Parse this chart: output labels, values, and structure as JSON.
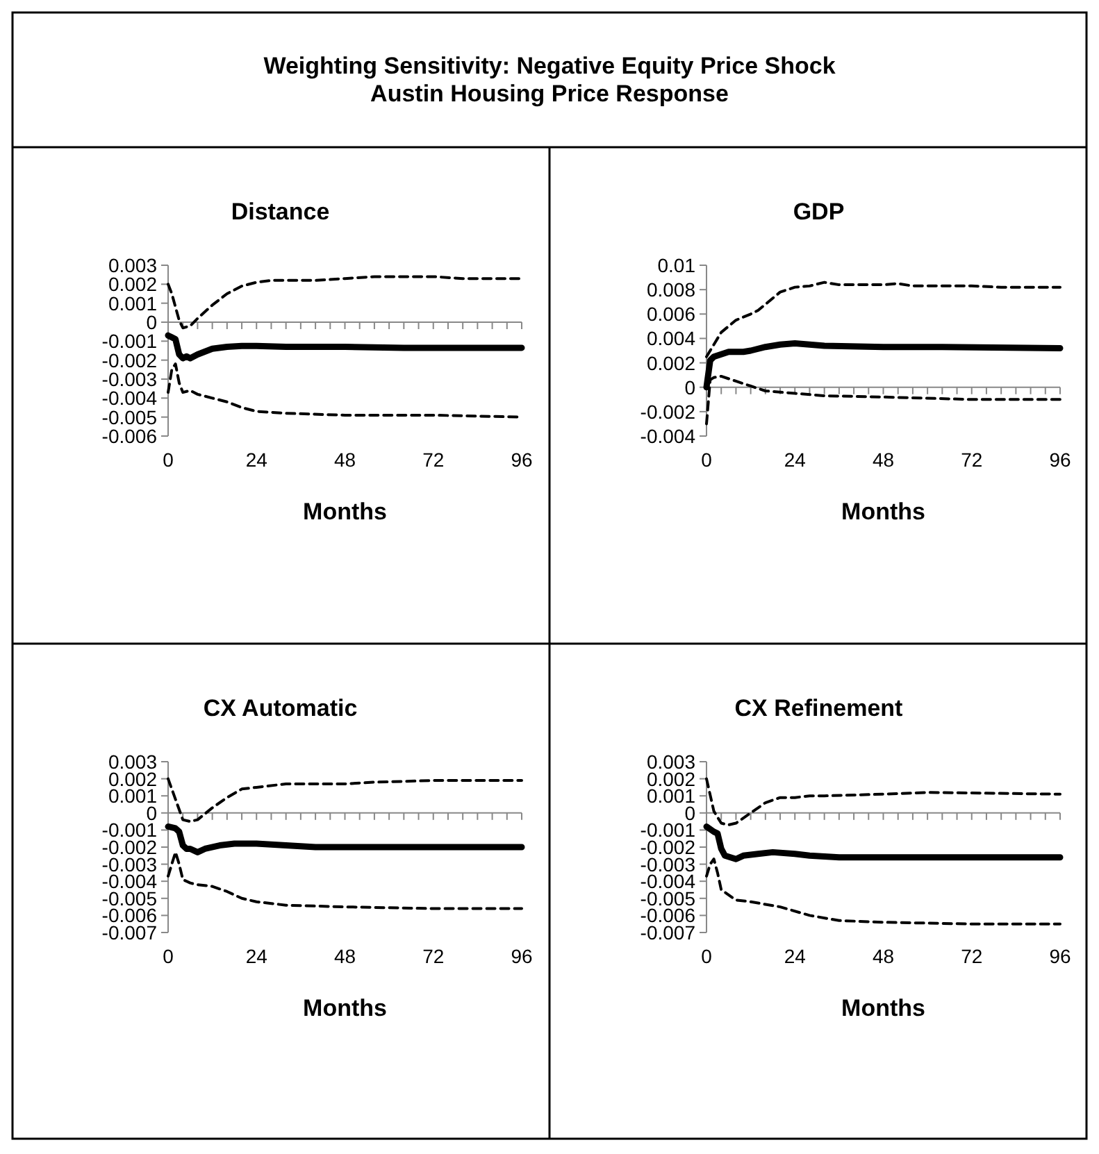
{
  "chart_data": [
    {
      "type": "other",
      "title": "Weighting Sensitivity: Negative Equity Price Shock\nAustin Housing Price Response"
    },
    {
      "type": "line",
      "title": "Distance",
      "xlabel": "Months",
      "ylim": [
        -0.006,
        0.003
      ],
      "yticks": [
        -0.006,
        -0.005,
        -0.004,
        -0.003,
        -0.002,
        -0.001,
        0,
        0.001,
        0.002,
        0.003
      ],
      "xlim": [
        0,
        96
      ],
      "xticks": [
        0,
        {
          "value": 4,
          "label": null
        },
        {
          "value": 8,
          "label": null
        },
        {
          "value": 12,
          "label": null
        },
        {
          "value": 16,
          "label": null
        },
        {
          "value": 20,
          "label": null
        },
        24,
        {
          "value": 28,
          "label": null
        },
        {
          "value": 32,
          "label": null
        },
        {
          "value": 36,
          "label": null
        },
        {
          "value": 40,
          "label": null
        },
        {
          "value": 44,
          "label": null
        },
        48,
        {
          "value": 52,
          "label": null
        },
        {
          "value": 56,
          "label": null
        },
        {
          "value": 60,
          "label": null
        },
        {
          "value": 64,
          "label": null
        },
        {
          "value": 68,
          "label": null
        },
        72,
        {
          "value": 76,
          "label": null
        },
        {
          "value": 80,
          "label": null
        },
        {
          "value": 84,
          "label": null
        },
        {
          "value": 88,
          "label": null
        },
        {
          "value": 92,
          "label": null
        },
        96
      ],
      "series": [
        {
          "color": "#000000",
          "line_style": "solid",
          "x": [
            0,
            1,
            2,
            3,
            4,
            5,
            6,
            8,
            12,
            16,
            20,
            24,
            32,
            48,
            64,
            96
          ],
          "values": [
            -0.0007,
            -0.0008,
            -0.0009,
            -0.0017,
            -0.0019,
            -0.0018,
            -0.0019,
            -0.0017,
            -0.0014,
            -0.0013,
            -0.00125,
            -0.00125,
            -0.0013,
            -0.0013,
            -0.00135,
            -0.00135
          ]
        },
        {
          "color": "#000000",
          "line_style": "dashed",
          "x": [
            0,
            1,
            2,
            3,
            4,
            6,
            8,
            12,
            16,
            20,
            24,
            28,
            40,
            48,
            56,
            72,
            80,
            96
          ],
          "values": [
            0.002,
            0.0015,
            0.0008,
            0.0001,
            -0.0003,
            -0.0002,
            0.0002,
            0.0009,
            0.0015,
            0.0019,
            0.0021,
            0.0022,
            0.0022,
            0.0023,
            0.0024,
            0.0024,
            0.0023,
            0.0023
          ]
        },
        {
          "color": "#000000",
          "line_style": "dashed",
          "x": [
            0,
            1,
            2,
            3,
            4,
            6,
            8,
            12,
            16,
            20,
            24,
            32,
            48,
            72,
            96
          ],
          "values": [
            -0.0037,
            -0.0025,
            -0.0022,
            -0.0032,
            -0.0037,
            -0.0036,
            -0.0038,
            -0.004,
            -0.0042,
            -0.0045,
            -0.0047,
            -0.0048,
            -0.0049,
            -0.0049,
            -0.005
          ]
        }
      ]
    },
    {
      "type": "line",
      "title": "GDP",
      "xlabel": "Months",
      "ylim": [
        -0.004,
        0.01
      ],
      "yticks": [
        -0.004,
        -0.002,
        0,
        0.002,
        0.004,
        0.006,
        0.008,
        0.01
      ],
      "xlim": [
        0,
        96
      ],
      "xticks": [
        0,
        {
          "value": 4,
          "label": null
        },
        {
          "value": 8,
          "label": null
        },
        {
          "value": 12,
          "label": null
        },
        {
          "value": 16,
          "label": null
        },
        {
          "value": 20,
          "label": null
        },
        24,
        {
          "value": 28,
          "label": null
        },
        {
          "value": 32,
          "label": null
        },
        {
          "value": 36,
          "label": null
        },
        {
          "value": 40,
          "label": null
        },
        {
          "value": 44,
          "label": null
        },
        48,
        {
          "value": 52,
          "label": null
        },
        {
          "value": 56,
          "label": null
        },
        {
          "value": 60,
          "label": null
        },
        {
          "value": 64,
          "label": null
        },
        {
          "value": 68,
          "label": null
        },
        72,
        {
          "value": 76,
          "label": null
        },
        {
          "value": 80,
          "label": null
        },
        {
          "value": 84,
          "label": null
        },
        {
          "value": 88,
          "label": null
        },
        {
          "value": 92,
          "label": null
        },
        96
      ],
      "series": [
        {
          "color": "#000000",
          "line_style": "solid",
          "x": [
            0,
            1,
            2,
            4,
            6,
            10,
            12,
            16,
            20,
            24,
            28,
            32,
            48,
            64,
            96
          ],
          "values": [
            0,
            0.0022,
            0.0025,
            0.0027,
            0.0029,
            0.0029,
            0.003,
            0.0033,
            0.0035,
            0.0036,
            0.0035,
            0.0034,
            0.0033,
            0.0033,
            0.0032
          ]
        },
        {
          "color": "#000000",
          "line_style": "dashed",
          "x": [
            0,
            2,
            4,
            6,
            8,
            12,
            14,
            16,
            20,
            24,
            28,
            32,
            36,
            48,
            52,
            56,
            72,
            80,
            96
          ],
          "values": [
            0.0025,
            0.0035,
            0.0045,
            0.005,
            0.0055,
            0.006,
            0.0063,
            0.0068,
            0.0078,
            0.0082,
            0.0083,
            0.0086,
            0.0084,
            0.0084,
            0.0085,
            0.0083,
            0.0083,
            0.0082,
            0.0082
          ]
        },
        {
          "color": "#000000",
          "line_style": "dashed",
          "x": [
            0,
            1,
            2,
            4,
            8,
            12,
            16,
            24,
            32,
            48,
            72,
            96
          ],
          "values": [
            -0.003,
            0.0006,
            0.0008,
            0.0009,
            0.0005,
            0.0001,
            -0.0003,
            -0.0005,
            -0.0007,
            -0.0008,
            -0.001,
            -0.001
          ]
        }
      ]
    },
    {
      "type": "line",
      "title": "CX Automatic",
      "xlabel": "Months",
      "ylim": [
        -0.007,
        0.003
      ],
      "yticks": [
        -0.007,
        -0.006,
        -0.005,
        -0.004,
        -0.003,
        -0.002,
        -0.001,
        0,
        0.001,
        0.002,
        0.003
      ],
      "xlim": [
        0,
        96
      ],
      "xticks": [
        0,
        {
          "value": 4,
          "label": null
        },
        {
          "value": 8,
          "label": null
        },
        {
          "value": 12,
          "label": null
        },
        {
          "value": 16,
          "label": null
        },
        {
          "value": 20,
          "label": null
        },
        24,
        {
          "value": 28,
          "label": null
        },
        {
          "value": 32,
          "label": null
        },
        {
          "value": 36,
          "label": null
        },
        {
          "value": 40,
          "label": null
        },
        {
          "value": 44,
          "label": null
        },
        48,
        {
          "value": 52,
          "label": null
        },
        {
          "value": 56,
          "label": null
        },
        {
          "value": 60,
          "label": null
        },
        {
          "value": 64,
          "label": null
        },
        {
          "value": 68,
          "label": null
        },
        72,
        {
          "value": 76,
          "label": null
        },
        {
          "value": 80,
          "label": null
        },
        {
          "value": 84,
          "label": null
        },
        {
          "value": 88,
          "label": null
        },
        {
          "value": 92,
          "label": null
        },
        96
      ],
      "series": [
        {
          "color": "#000000",
          "line_style": "solid",
          "x": [
            0,
            2,
            3,
            4,
            5,
            6,
            8,
            10,
            14,
            18,
            24,
            32,
            40,
            48,
            96
          ],
          "values": [
            -0.0008,
            -0.0009,
            -0.0011,
            -0.0019,
            -0.0021,
            -0.0021,
            -0.0023,
            -0.0021,
            -0.0019,
            -0.0018,
            -0.0018,
            -0.0019,
            -0.002,
            -0.002,
            -0.002
          ]
        },
        {
          "color": "#000000",
          "line_style": "dashed",
          "x": [
            0,
            2,
            4,
            6,
            8,
            12,
            16,
            20,
            24,
            32,
            48,
            56,
            72,
            96
          ],
          "values": [
            0.002,
            0.0008,
            -0.0004,
            -0.0005,
            -0.0004,
            0.0003,
            0.0009,
            0.0014,
            0.0015,
            0.0017,
            0.0017,
            0.0018,
            0.0019,
            0.0019
          ]
        },
        {
          "color": "#000000",
          "line_style": "dashed",
          "x": [
            0,
            1,
            2,
            3,
            4,
            6,
            8,
            12,
            16,
            20,
            24,
            32,
            48,
            72,
            96
          ],
          "values": [
            -0.0037,
            -0.003,
            -0.0023,
            -0.003,
            -0.0039,
            -0.0041,
            -0.0042,
            -0.0043,
            -0.0046,
            -0.005,
            -0.0052,
            -0.0054,
            -0.0055,
            -0.0056,
            -0.0056
          ]
        }
      ]
    },
    {
      "type": "line",
      "title": "CX Refinement",
      "xlabel": "Months",
      "ylim": [
        -0.007,
        0.003
      ],
      "yticks": [
        -0.007,
        -0.006,
        -0.005,
        -0.004,
        -0.003,
        -0.002,
        -0.001,
        0,
        0.001,
        0.002,
        0.003
      ],
      "xlim": [
        0,
        96
      ],
      "xticks": [
        0,
        {
          "value": 4,
          "label": null
        },
        {
          "value": 8,
          "label": null
        },
        {
          "value": 12,
          "label": null
        },
        {
          "value": 16,
          "label": null
        },
        {
          "value": 20,
          "label": null
        },
        24,
        {
          "value": 28,
          "label": null
        },
        {
          "value": 32,
          "label": null
        },
        {
          "value": 36,
          "label": null
        },
        {
          "value": 40,
          "label": null
        },
        {
          "value": 44,
          "label": null
        },
        48,
        {
          "value": 52,
          "label": null
        },
        {
          "value": 56,
          "label": null
        },
        {
          "value": 60,
          "label": null
        },
        {
          "value": 64,
          "label": null
        },
        {
          "value": 68,
          "label": null
        },
        72,
        {
          "value": 76,
          "label": null
        },
        {
          "value": 80,
          "label": null
        },
        {
          "value": 84,
          "label": null
        },
        {
          "value": 88,
          "label": null
        },
        {
          "value": 92,
          "label": null
        },
        96
      ],
      "series": [
        {
          "color": "#000000",
          "line_style": "solid",
          "x": [
            0,
            2,
            3,
            4,
            5,
            8,
            10,
            14,
            18,
            24,
            28,
            36,
            96
          ],
          "values": [
            -0.0008,
            -0.0011,
            -0.0012,
            -0.0021,
            -0.0025,
            -0.0027,
            -0.0025,
            -0.0024,
            -0.0023,
            -0.0024,
            -0.0025,
            -0.0026,
            -0.0026
          ]
        },
        {
          "color": "#000000",
          "line_style": "dashed",
          "x": [
            0,
            2,
            4,
            6,
            8,
            12,
            16,
            20,
            24,
            28,
            32,
            48,
            60,
            96
          ],
          "values": [
            0.002,
            0.0001,
            -0.0006,
            -0.0007,
            -0.0006,
            0,
            0.0006,
            0.0009,
            0.0009,
            0.001,
            0.001,
            0.0011,
            0.0012,
            0.0011
          ]
        },
        {
          "color": "#000000",
          "line_style": "dashed",
          "x": [
            0,
            1,
            2,
            3,
            4,
            8,
            12,
            20,
            28,
            36,
            48,
            72,
            96
          ],
          "values": [
            -0.0037,
            -0.003,
            -0.0027,
            -0.0035,
            -0.0045,
            -0.0051,
            -0.0052,
            -0.0055,
            -0.006,
            -0.0063,
            -0.0064,
            -0.0065,
            -0.0065
          ]
        }
      ]
    }
  ]
}
